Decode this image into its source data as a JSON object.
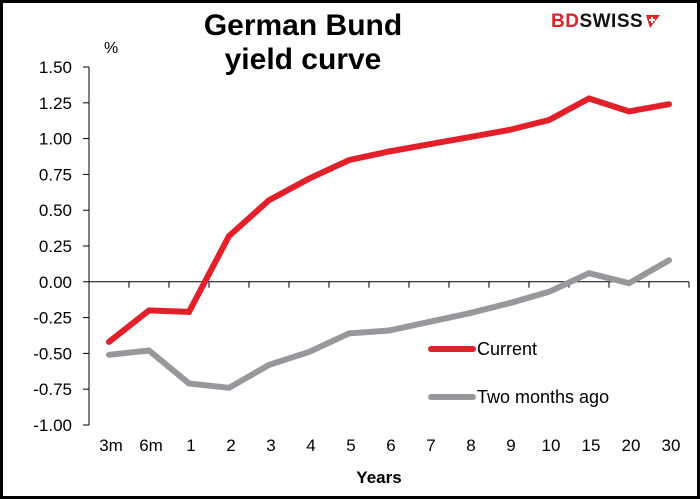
{
  "chart_data": {
    "type": "line",
    "title": "German Bund yield curve",
    "title_lines": [
      "German Bund",
      "yield curve"
    ],
    "xlabel": "Years",
    "ylabel": "%",
    "ylim": [
      -1.0,
      1.5
    ],
    "yticks": [
      "1.50",
      "1.25",
      "1.00",
      "0.75",
      "0.50",
      "0.25",
      "0.00",
      "-0.25",
      "-0.50",
      "-0.75",
      "-1.00"
    ],
    "categories": [
      "3m",
      "6m",
      "1",
      "2",
      "3",
      "4",
      "5",
      "6",
      "7",
      "8",
      "9",
      "10",
      "15",
      "20",
      "30"
    ],
    "grid": false,
    "legend_position": "lower right inside",
    "series": [
      {
        "name": "Current",
        "color": "#e3202a",
        "values": [
          -0.42,
          -0.2,
          -0.21,
          0.32,
          0.57,
          0.72,
          0.85,
          0.91,
          0.96,
          1.01,
          1.06,
          1.13,
          1.28,
          1.19,
          1.24
        ]
      },
      {
        "name": "Two months ago",
        "color": "#97989c",
        "values": [
          -0.51,
          -0.48,
          -0.71,
          -0.74,
          -0.58,
          -0.49,
          -0.36,
          -0.34,
          -0.28,
          -0.22,
          -0.15,
          -0.07,
          0.06,
          -0.01,
          0.15
        ]
      }
    ]
  },
  "branding": {
    "logo_part1": "BD",
    "logo_part2": "SWISS"
  }
}
